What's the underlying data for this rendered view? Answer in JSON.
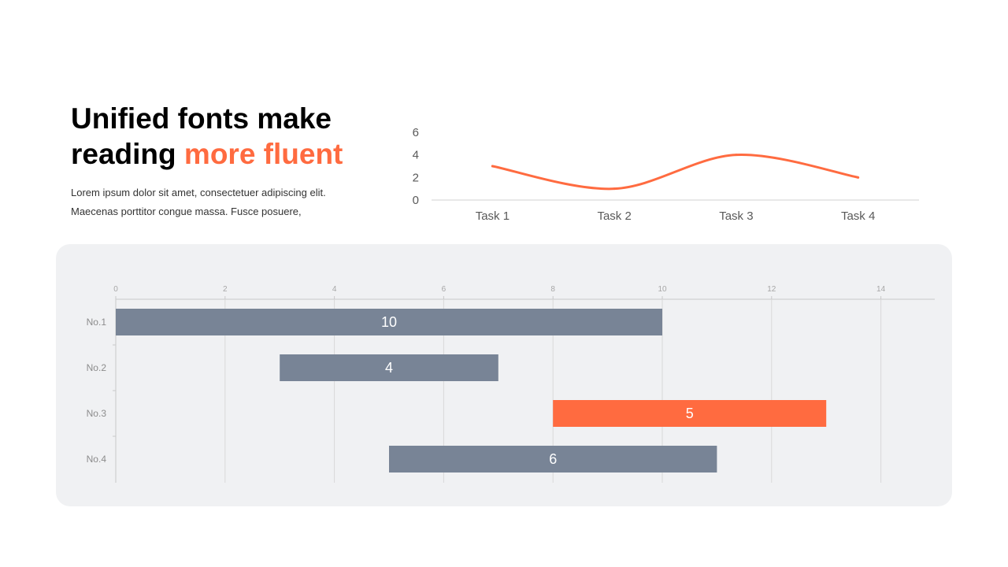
{
  "heading": {
    "line1": "Unified fonts make",
    "line2_prefix": "reading ",
    "line2_accent": "more fluent"
  },
  "body": {
    "line1": "Lorem ipsum dolor sit amet, consectetuer adipiscing elit.",
    "line2": "Maecenas porttitor congue massa. Fusce posuere,"
  },
  "colors": {
    "accent": "#ff6b40",
    "bar_gray": "#788496",
    "panel_bg": "#f0f1f3"
  },
  "chart_data": [
    {
      "type": "line",
      "categories": [
        "Task 1",
        "Task 2",
        "Task 3",
        "Task  4"
      ],
      "series": [
        {
          "values": [
            3,
            1,
            4,
            2
          ]
        }
      ],
      "yticks": [
        0,
        2,
        4,
        6
      ],
      "ylim": [
        0,
        6
      ],
      "grid": false,
      "smooth": true,
      "color": "#ff6b40"
    },
    {
      "type": "bar",
      "orientation": "horizontal-floating",
      "categories": [
        "No.1",
        "No.2",
        "No.3",
        "No.4"
      ],
      "starts": [
        0,
        3,
        8,
        5
      ],
      "values": [
        10,
        4,
        5,
        6
      ],
      "labels": [
        "10",
        "4",
        "5",
        "6"
      ],
      "colors": [
        "#788496",
        "#788496",
        "#ff6b40",
        "#788496"
      ],
      "xticks": [
        0,
        2,
        4,
        6,
        8,
        10,
        12,
        14
      ],
      "xlim": [
        0,
        15
      ],
      "x_axis_position": "top",
      "grid": true
    }
  ]
}
